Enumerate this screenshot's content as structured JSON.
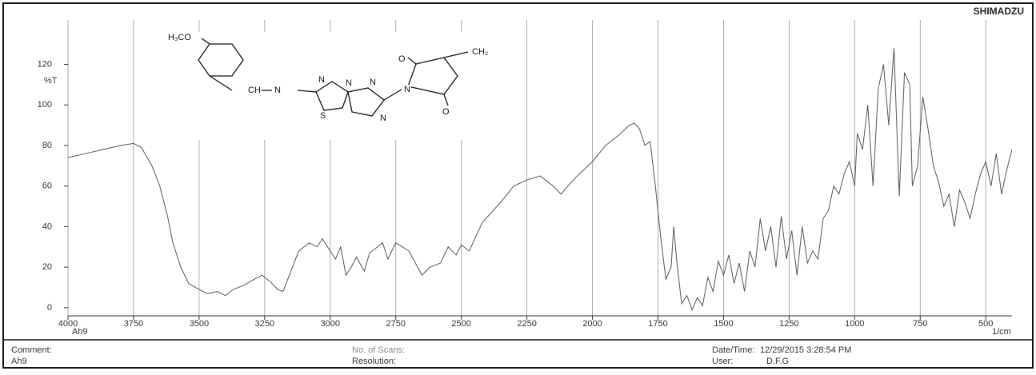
{
  "chart_data": {
    "type": "line",
    "brand": "SHIMADZU",
    "y_label": "%T",
    "x_label": "1/cm",
    "sample": "Ah9",
    "footer": {
      "comment_label": "Comment:",
      "comment": "Ah9",
      "scans_label": "No. of Scans:",
      "resolution_label": "Resolution:",
      "date_label": "Date/Time:",
      "date": "12/29/2015 3:28:54 PM",
      "user_label": "User:",
      "user": "D.F.G"
    },
    "structure_labels": [
      "H₃CO",
      "CH",
      "N",
      "N",
      "N",
      "S",
      "N",
      "N",
      "N",
      "O",
      "O",
      "CH₂"
    ],
    "xlim": [
      4000,
      400
    ],
    "ylim": [
      -4,
      134
    ],
    "xticks": [
      4000,
      3750,
      3500,
      3250,
      3000,
      2750,
      2500,
      2250,
      2000,
      1750,
      1500,
      1250,
      1000,
      750,
      500
    ],
    "yticks": [
      0,
      20,
      40,
      60,
      80,
      100,
      120
    ],
    "grid": true,
    "x": [
      4000,
      3900,
      3800,
      3750,
      3720,
      3680,
      3650,
      3620,
      3600,
      3570,
      3540,
      3500,
      3470,
      3430,
      3400,
      3370,
      3330,
      3290,
      3260,
      3230,
      3200,
      3180,
      3150,
      3120,
      3080,
      3050,
      3030,
      3000,
      2980,
      2960,
      2940,
      2920,
      2900,
      2870,
      2850,
      2800,
      2780,
      2750,
      2700,
      2650,
      2620,
      2580,
      2550,
      2520,
      2500,
      2470,
      2420,
      2350,
      2300,
      2250,
      2200,
      2150,
      2120,
      2080,
      2050,
      2000,
      1950,
      1900,
      1860,
      1840,
      1820,
      1800,
      1780,
      1760,
      1740,
      1720,
      1700,
      1690,
      1680,
      1660,
      1640,
      1620,
      1600,
      1580,
      1560,
      1540,
      1520,
      1500,
      1480,
      1460,
      1440,
      1420,
      1400,
      1380,
      1360,
      1340,
      1320,
      1300,
      1280,
      1260,
      1240,
      1220,
      1200,
      1180,
      1160,
      1140,
      1120,
      1100,
      1080,
      1060,
      1040,
      1020,
      1000,
      990,
      970,
      950,
      930,
      910,
      890,
      870,
      850,
      830,
      810,
      790,
      780,
      760,
      740,
      720,
      700,
      680,
      660,
      640,
      620,
      600,
      580,
      560,
      540,
      520,
      500,
      480,
      460,
      440,
      420,
      400
    ],
    "series": [
      {
        "name": "Ah9",
        "color": "#555555",
        "values": [
          74,
          77,
          80,
          81,
          79,
          70,
          60,
          45,
          32,
          20,
          12,
          9,
          7,
          8,
          6,
          9,
          11,
          14,
          16,
          13,
          9,
          8,
          18,
          28,
          32,
          30,
          34,
          28,
          24,
          30,
          16,
          20,
          25,
          18,
          27,
          32,
          24,
          32,
          28,
          16,
          20,
          22,
          30,
          26,
          31,
          28,
          42,
          52,
          60,
          63,
          65,
          60,
          56,
          62,
          66,
          72,
          80,
          85,
          90,
          91,
          88,
          80,
          82,
          60,
          35,
          14,
          20,
          40,
          25,
          2,
          6,
          -1,
          5,
          1,
          15,
          8,
          23,
          16,
          26,
          12,
          22,
          8,
          28,
          20,
          44,
          28,
          40,
          20,
          45,
          24,
          38,
          16,
          40,
          22,
          28,
          24,
          44,
          48,
          60,
          56,
          66,
          72,
          60,
          86,
          78,
          100,
          60,
          108,
          120,
          90,
          128,
          55,
          116,
          110,
          60,
          70,
          104,
          88,
          70,
          62,
          50,
          56,
          40,
          58,
          52,
          44,
          56,
          66,
          72,
          60,
          76,
          56,
          68,
          78
        ]
      }
    ]
  }
}
